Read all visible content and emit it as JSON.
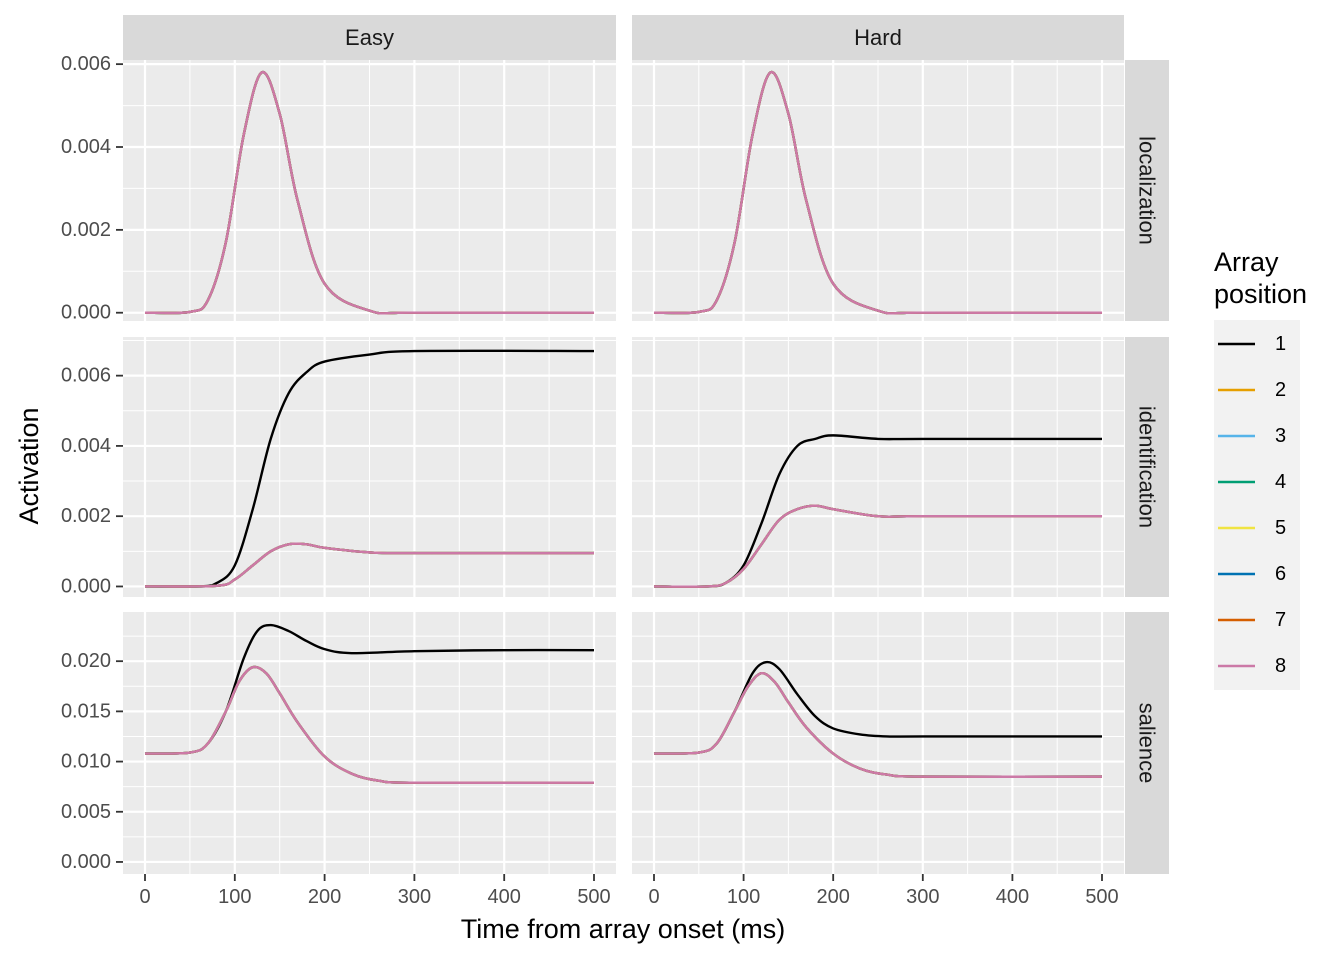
{
  "chart_data": {
    "type": "line",
    "layout": "facet-grid",
    "xlabel": "Time from array onset (ms)",
    "ylabel": "Activation",
    "columns": [
      "Easy",
      "Hard"
    ],
    "rows": [
      "localization",
      "identification",
      "salience"
    ],
    "xlim": [
      0,
      500
    ],
    "x_ticks": [
      0,
      100,
      200,
      300,
      400,
      500
    ],
    "y_axes": [
      {
        "row": "localization",
        "ylim": [
          -0.0002,
          0.0061
        ],
        "ticks": [
          0.0,
          0.002,
          0.004,
          0.006
        ],
        "tick_labels": [
          "0.000",
          "0.002",
          "0.004",
          "0.006"
        ]
      },
      {
        "row": "identification",
        "ylim": [
          -0.0003,
          0.0071
        ],
        "ticks": [
          0.0,
          0.002,
          0.004,
          0.006
        ],
        "tick_labels": [
          "0.000",
          "0.002",
          "0.004",
          "0.006"
        ]
      },
      {
        "row": "salience",
        "ylim": [
          -0.0012,
          0.0249
        ],
        "ticks": [
          0.0,
          0.005,
          0.01,
          0.015,
          0.02
        ],
        "tick_labels": [
          "0.000",
          "0.005",
          "0.010",
          "0.015",
          "0.020"
        ]
      }
    ],
    "legend": {
      "title_lines": [
        "Array",
        "position"
      ],
      "placement": "right",
      "items": [
        {
          "label": "1",
          "color": "#000000"
        },
        {
          "label": "2",
          "color": "#E69F00"
        },
        {
          "label": "3",
          "color": "#56B4E9"
        },
        {
          "label": "4",
          "color": "#009E73"
        },
        {
          "label": "5",
          "color": "#F0E442"
        },
        {
          "label": "6",
          "color": "#0072B2"
        },
        {
          "label": "7",
          "color": "#D55E00"
        },
        {
          "label": "8",
          "color": "#CC79A7"
        }
      ]
    },
    "colors": {
      "panel_bg": "#EBEBEB",
      "strip_bg": "#D9D9D9",
      "grid": "#FFFFFF",
      "text": "#4D4D4D"
    },
    "grid": true,
    "panels": [
      {
        "row": "localization",
        "column": "Easy",
        "series": [
          {
            "name": "1",
            "points": [
              [
                0,
                0
              ],
              [
                50,
                2e-05
              ],
              [
                70,
                0.0003
              ],
              [
                90,
                0.0017
              ],
              [
                110,
                0.0043
              ],
              [
                130,
                0.0058
              ],
              [
                150,
                0.0048
              ],
              [
                170,
                0.0027
              ],
              [
                200,
                0.0007
              ],
              [
                250,
                5e-05
              ],
              [
                300,
                0
              ],
              [
                500,
                0
              ]
            ]
          },
          {
            "name": "2-8",
            "points": [
              [
                0,
                0
              ],
              [
                50,
                2e-05
              ],
              [
                70,
                0.0003
              ],
              [
                90,
                0.0017
              ],
              [
                110,
                0.0043
              ],
              [
                130,
                0.0058
              ],
              [
                150,
                0.0048
              ],
              [
                170,
                0.0027
              ],
              [
                200,
                0.0007
              ],
              [
                250,
                5e-05
              ],
              [
                300,
                0
              ],
              [
                500,
                0
              ]
            ]
          }
        ]
      },
      {
        "row": "localization",
        "column": "Hard",
        "series": [
          {
            "name": "1",
            "points": [
              [
                0,
                0
              ],
              [
                50,
                2e-05
              ],
              [
                70,
                0.0003
              ],
              [
                90,
                0.0017
              ],
              [
                110,
                0.0043
              ],
              [
                130,
                0.0058
              ],
              [
                150,
                0.0048
              ],
              [
                170,
                0.0027
              ],
              [
                200,
                0.0007
              ],
              [
                250,
                5e-05
              ],
              [
                300,
                0
              ],
              [
                500,
                0
              ]
            ]
          },
          {
            "name": "2-8",
            "points": [
              [
                0,
                0
              ],
              [
                50,
                2e-05
              ],
              [
                70,
                0.0003
              ],
              [
                90,
                0.0017
              ],
              [
                110,
                0.0043
              ],
              [
                130,
                0.0058
              ],
              [
                150,
                0.0048
              ],
              [
                170,
                0.0027
              ],
              [
                200,
                0.0007
              ],
              [
                250,
                5e-05
              ],
              [
                300,
                0
              ],
              [
                500,
                0
              ]
            ]
          }
        ]
      },
      {
        "row": "identification",
        "column": "Easy",
        "series": [
          {
            "name": "1",
            "points": [
              [
                0,
                0
              ],
              [
                60,
                0
              ],
              [
                80,
                0.0001
              ],
              [
                100,
                0.0006
              ],
              [
                120,
                0.0022
              ],
              [
                140,
                0.0042
              ],
              [
                160,
                0.0055
              ],
              [
                180,
                0.0061
              ],
              [
                200,
                0.0064
              ],
              [
                250,
                0.0066
              ],
              [
                300,
                0.0067
              ],
              [
                500,
                0.0067
              ]
            ]
          },
          {
            "name": "2-8",
            "points": [
              [
                0,
                0
              ],
              [
                80,
                2e-05
              ],
              [
                100,
                0.0002
              ],
              [
                120,
                0.0006
              ],
              [
                140,
                0.001
              ],
              [
                160,
                0.0012
              ],
              [
                180,
                0.0012
              ],
              [
                200,
                0.0011
              ],
              [
                250,
                0.00097
              ],
              [
                300,
                0.00095
              ],
              [
                500,
                0.00095
              ]
            ]
          }
        ]
      },
      {
        "row": "identification",
        "column": "Hard",
        "series": [
          {
            "name": "1",
            "points": [
              [
                0,
                0
              ],
              [
                60,
                0
              ],
              [
                80,
                0.0001
              ],
              [
                100,
                0.0006
              ],
              [
                120,
                0.0018
              ],
              [
                140,
                0.0032
              ],
              [
                160,
                0.004
              ],
              [
                180,
                0.0042
              ],
              [
                200,
                0.0043
              ],
              [
                250,
                0.0042
              ],
              [
                300,
                0.0042
              ],
              [
                500,
                0.0042
              ]
            ]
          },
          {
            "name": "2-8",
            "points": [
              [
                0,
                0
              ],
              [
                60,
                0
              ],
              [
                80,
                0.0001
              ],
              [
                100,
                0.0005
              ],
              [
                120,
                0.0012
              ],
              [
                140,
                0.0019
              ],
              [
                160,
                0.0022
              ],
              [
                180,
                0.0023
              ],
              [
                200,
                0.0022
              ],
              [
                250,
                0.002
              ],
              [
                300,
                0.002
              ],
              [
                500,
                0.002
              ]
            ]
          }
        ]
      },
      {
        "row": "salience",
        "column": "Easy",
        "series": [
          {
            "name": "1",
            "points": [
              [
                0,
                0.0108
              ],
              [
                50,
                0.0109
              ],
              [
                70,
                0.0118
              ],
              [
                90,
                0.015
              ],
              [
                110,
                0.0203
              ],
              [
                125,
                0.023
              ],
              [
                140,
                0.0236
              ],
              [
                160,
                0.023
              ],
              [
                180,
                0.022
              ],
              [
                200,
                0.0212
              ],
              [
                230,
                0.0208
              ],
              [
                300,
                0.021
              ],
              [
                400,
                0.0211
              ],
              [
                500,
                0.0211
              ]
            ]
          },
          {
            "name": "2-8",
            "points": [
              [
                0,
                0.0108
              ],
              [
                50,
                0.0109
              ],
              [
                70,
                0.0118
              ],
              [
                90,
                0.015
              ],
              [
                105,
                0.018
              ],
              [
                120,
                0.0194
              ],
              [
                135,
                0.0188
              ],
              [
                150,
                0.0168
              ],
              [
                170,
                0.0139
              ],
              [
                200,
                0.0105
              ],
              [
                230,
                0.0088
              ],
              [
                260,
                0.0081
              ],
              [
                300,
                0.0079
              ],
              [
                500,
                0.0079
              ]
            ]
          }
        ]
      },
      {
        "row": "salience",
        "column": "Hard",
        "series": [
          {
            "name": "1",
            "points": [
              [
                0,
                0.0108
              ],
              [
                50,
                0.0109
              ],
              [
                70,
                0.0118
              ],
              [
                90,
                0.015
              ],
              [
                110,
                0.0188
              ],
              [
                125,
                0.0199
              ],
              [
                140,
                0.0192
              ],
              [
                160,
                0.0167
              ],
              [
                180,
                0.0145
              ],
              [
                200,
                0.0133
              ],
              [
                230,
                0.0127
              ],
              [
                260,
                0.0125
              ],
              [
                300,
                0.0125
              ],
              [
                500,
                0.0125
              ]
            ]
          },
          {
            "name": "2-8",
            "points": [
              [
                0,
                0.0108
              ],
              [
                50,
                0.0109
              ],
              [
                70,
                0.0118
              ],
              [
                90,
                0.015
              ],
              [
                105,
                0.0175
              ],
              [
                120,
                0.0188
              ],
              [
                135,
                0.0179
              ],
              [
                150,
                0.0159
              ],
              [
                170,
                0.0134
              ],
              [
                200,
                0.0108
              ],
              [
                230,
                0.0093
              ],
              [
                260,
                0.0087
              ],
              [
                300,
                0.0085
              ],
              [
                500,
                0.0085
              ]
            ]
          }
        ]
      }
    ]
  }
}
